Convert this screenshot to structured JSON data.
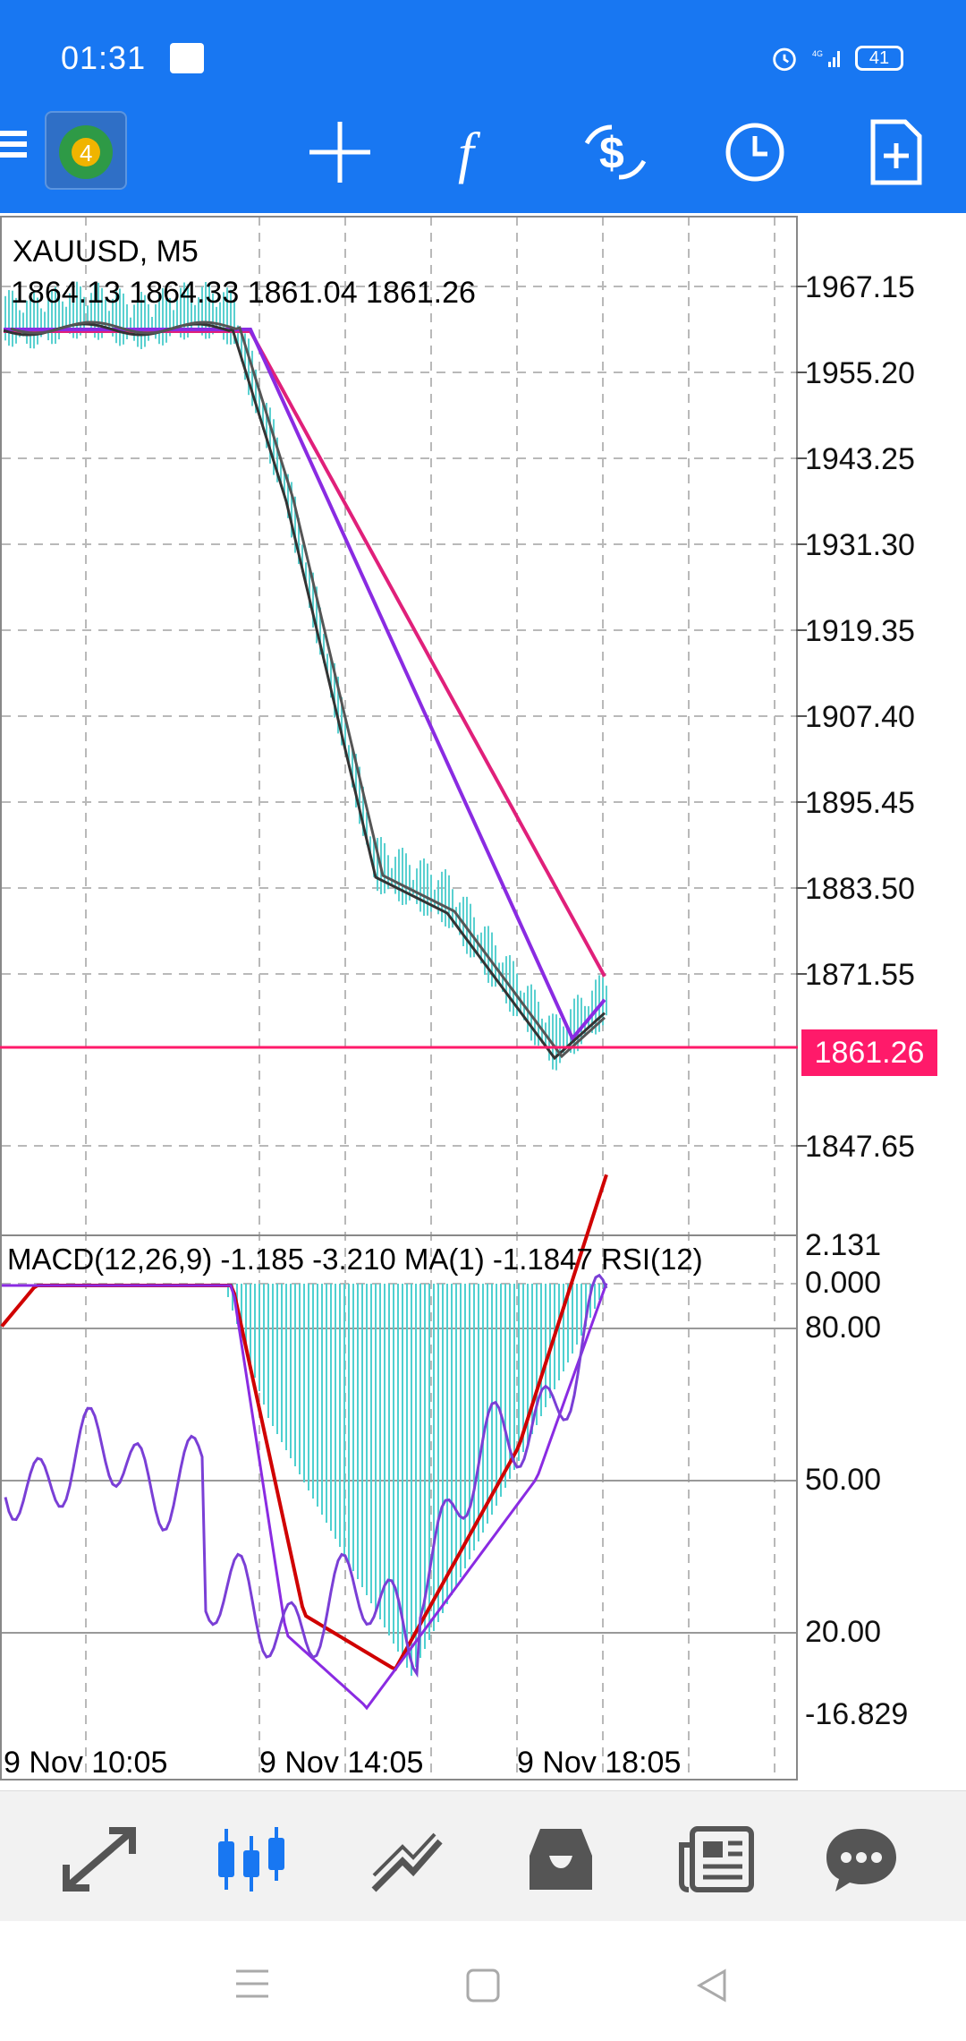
{
  "status_bar": {
    "time": "01:31",
    "network": "4G",
    "battery": "41"
  },
  "toolbar": {
    "icons": [
      "menu-icon",
      "mt4-logo-icon",
      "crosshair-icon",
      "indicators-icon",
      "trade-icon",
      "period-icon",
      "new-order-icon"
    ]
  },
  "chart": {
    "symbol": "XAUUSD, M5",
    "ohlc": "1864.13 1864.33 1861.04 1861.26",
    "current_price": "1861.26",
    "price_labels": [
      "1967.15",
      "1955.20",
      "1943.25",
      "1931.30",
      "1919.35",
      "1907.40",
      "1895.45",
      "1883.50",
      "1871.55",
      "1847.65"
    ],
    "indicator_header": "MACD(12,26,9) -1.185 -3.210 MA(1) -1.1847 RSI(12)",
    "indicator_labels": [
      "2.131",
      "0.000",
      "80.00",
      "50.00",
      "20.00",
      "-16.829"
    ],
    "time_labels": [
      "9 Nov 10:05",
      "9 Nov 14:05",
      "9 Nov 18:05"
    ],
    "colors": {
      "ma_fast": "#333333",
      "ma_mid": "#8a2be2",
      "ma_slow": "#e0207a",
      "price_line": "#ff1a6a",
      "histogram": "#4fd0d0",
      "signal": "#d00000",
      "rsi": "#7a3fd6"
    }
  },
  "bottom_tabs": [
    "quotes-tab",
    "chart-tab",
    "trade-tab",
    "history-tab",
    "news-tab",
    "messages-tab"
  ],
  "system_nav": [
    "recents-button",
    "home-button",
    "back-button"
  ]
}
